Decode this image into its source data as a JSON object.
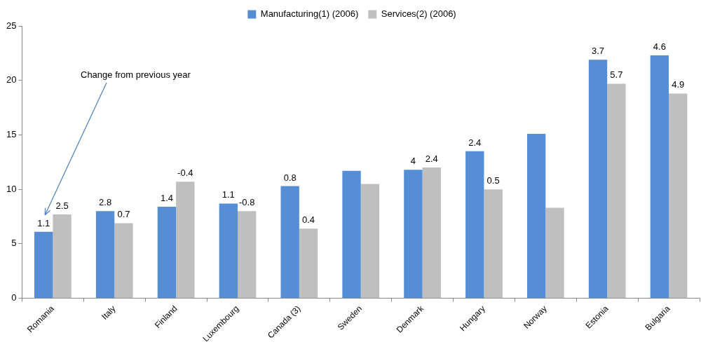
{
  "chart_data": {
    "type": "bar",
    "annotation": "Change from previous year",
    "categories": [
      "Romania",
      "Italy",
      "Finland",
      "Luxembourg",
      "Canada (3)",
      "Sweden",
      "Denmark",
      "Hungary",
      "Norway",
      "Estonia",
      "Bulgaria"
    ],
    "series": [
      {
        "name": "Manufacturing(1) (2006)",
        "color": "#558ED5",
        "values": [
          6.1,
          8.0,
          8.4,
          8.7,
          10.3,
          11.7,
          11.8,
          13.5,
          15.1,
          21.9,
          22.3
        ],
        "changes": [
          1.1,
          2.8,
          1.4,
          1.1,
          0.8,
          null,
          4,
          2.4,
          null,
          3.7,
          4.6
        ]
      },
      {
        "name": "Services(2) (2006)",
        "color": "#BFBFBF",
        "values": [
          7.7,
          6.9,
          10.7,
          8.0,
          6.4,
          10.5,
          12.0,
          10.0,
          8.3,
          19.7,
          18.8
        ],
        "changes": [
          2.5,
          0.7,
          -0.4,
          -0.8,
          0.4,
          null,
          2.4,
          0.5,
          null,
          5.7,
          4.9
        ]
      }
    ],
    "ylim": [
      0,
      25
    ],
    "yticks": [
      0,
      5,
      10,
      15,
      20,
      25
    ],
    "grid": false,
    "legend": "top"
  }
}
